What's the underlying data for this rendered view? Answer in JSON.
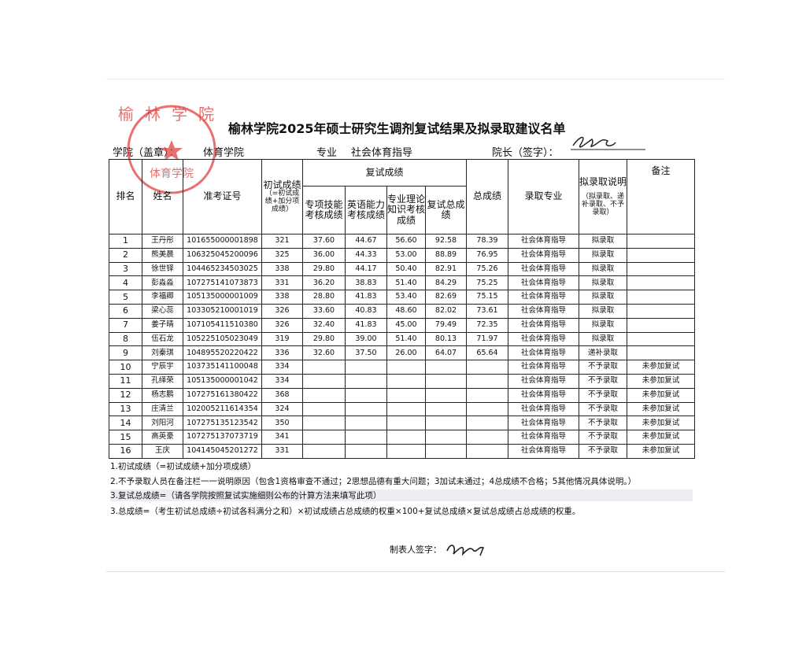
{
  "title": "榆林学院2025年硕士研究生调剂复试结果及拟录取建议名单",
  "info": {
    "college_label": "学院（盖章）：",
    "college": "体育学院",
    "major_label": "专业",
    "major": "社会体育指导",
    "dean_label": "院长（签字）："
  },
  "stamp": {
    "outer": "榆林学院",
    "inner": "体育学院"
  },
  "table": {
    "header": {
      "rank": "排名",
      "name": "姓名",
      "id": "准考证号",
      "initial": "初试成绩",
      "initial_note": "（=初试成绩+加分项成绩）",
      "retest": "复试成绩",
      "retest_cols": [
        "专项技能考核成绩",
        "英语能力考核成绩",
        "专业理论知识考核成绩",
        "复试总成绩"
      ],
      "total": "总成绩",
      "major": "录取专业",
      "status": "拟录取说明",
      "status_note": "（拟录取、递补录取、不予录取）",
      "note": "备注"
    },
    "rows": [
      [
        "1",
        "王丹彤",
        "101655000001898",
        "321",
        "37.60",
        "44.67",
        "56.60",
        "92.58",
        "78.39",
        "社会体育指导",
        "拟录取",
        null
      ],
      [
        "2",
        "熊美晨",
        "106325045200096",
        "325",
        "36.00",
        "44.33",
        "53.00",
        "88.89",
        "76.95",
        "社会体育指导",
        "拟录取",
        null
      ],
      [
        "3",
        "徐世铎",
        "104465234503025",
        "338",
        "29.80",
        "44.17",
        "50.40",
        "82.91",
        "75.26",
        "社会体育指导",
        "拟录取",
        null
      ],
      [
        "4",
        "彭淼淼",
        "107275141073873",
        "331",
        "36.20",
        "38.83",
        "51.40",
        "84.29",
        "75.25",
        "社会体育指导",
        "拟录取",
        null
      ],
      [
        "5",
        "李福卿",
        "105135000001009",
        "338",
        "28.80",
        "41.83",
        "53.40",
        "82.69",
        "75.15",
        "社会体育指导",
        "拟录取",
        null
      ],
      [
        "6",
        "梁心蕊",
        "103305210001019",
        "326",
        "33.60",
        "40.83",
        "48.60",
        "82.02",
        "73.61",
        "社会体育指导",
        "拟录取",
        null
      ],
      [
        "7",
        "姜子晴",
        "107105411510380",
        "326",
        "32.40",
        "41.83",
        "45.00",
        "79.49",
        "72.35",
        "社会体育指导",
        "拟录取",
        null
      ],
      [
        "8",
        "伍石龙",
        "105225105023049",
        "319",
        "29.80",
        "39.00",
        "51.40",
        "80.13",
        "71.97",
        "社会体育指导",
        "拟录取",
        null
      ],
      [
        "9",
        "刘秦琪",
        "104895520220422",
        "336",
        "32.60",
        "37.50",
        "26.00",
        "64.07",
        "65.64",
        "社会体育指导",
        "递补录取",
        null
      ],
      [
        "10",
        "宁辰宇",
        "103735141100048",
        "334",
        null,
        null,
        null,
        null,
        null,
        "社会体育指导",
        "不予录取",
        "未参加复试"
      ],
      [
        "11",
        "孔绎荣",
        "105135000001042",
        "334",
        null,
        null,
        null,
        null,
        null,
        "社会体育指导",
        "不予录取",
        "未参加复试"
      ],
      [
        "12",
        "杨志鹏",
        "107275161380422",
        "368",
        null,
        null,
        null,
        null,
        null,
        "社会体育指导",
        "不予录取",
        "未参加复试"
      ],
      [
        "13",
        "庄清兰",
        "102005211614354",
        "324",
        null,
        null,
        null,
        null,
        null,
        "社会体育指导",
        "不予录取",
        "未参加复试"
      ],
      [
        "14",
        "刘阳河",
        "107275135123542",
        "350",
        null,
        null,
        null,
        null,
        null,
        "社会体育指导",
        "不予录取",
        "未参加复试"
      ],
      [
        "15",
        "高英豪",
        "107275137073719",
        "341",
        null,
        null,
        null,
        null,
        null,
        "社会体育指导",
        "不予录取",
        "未参加复试"
      ],
      [
        "16",
        "王庆",
        "104145045201272",
        "331",
        null,
        null,
        null,
        null,
        null,
        "社会体育指导",
        "不予录取",
        "未参加复试"
      ]
    ]
  },
  "notes": [
    "1.初试成绩（=初试成绩+加分项成绩）",
    "2.不予录取人员在备注栏一一说明原因（包含1资格审查不通过；2思想品德有重大问题；3加试未通过；4总成绩不合格；5其他情况具体说明。）",
    "3.复试总成绩=（请各学院按照复试实施细则公布的计算方法来填写此项）",
    "3.总成绩=（考生初试总成绩÷初试各科满分之和）×初试成绩占总成绩的权重×100+复试总成绩×复试总成绩占总成绩的权重。"
  ],
  "footer": {
    "maker_label": "制表人签字："
  }
}
